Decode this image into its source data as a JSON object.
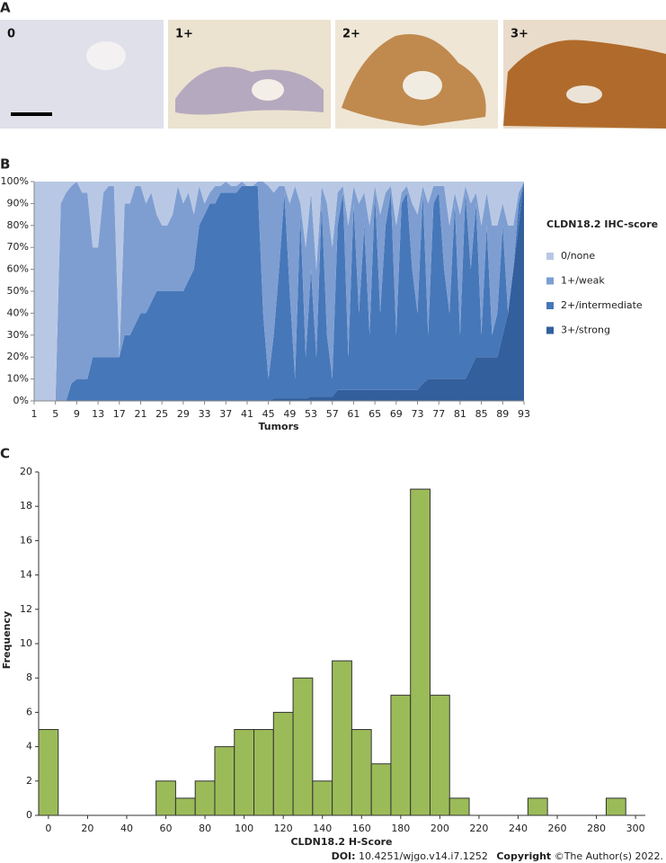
{
  "panel_a": {
    "label": "A",
    "images": [
      {
        "label": "0"
      },
      {
        "label": "1+"
      },
      {
        "label": "2+"
      },
      {
        "label": "3+"
      }
    ]
  },
  "chart_data": [
    {
      "type": "stacked_area",
      "panel_label": "B",
      "x_label": "Tumors",
      "legend_title": "CLDN18.2  IHC-score",
      "x": [
        1,
        2,
        3,
        4,
        5,
        6,
        7,
        8,
        9,
        10,
        11,
        12,
        13,
        14,
        15,
        16,
        17,
        18,
        19,
        20,
        21,
        22,
        23,
        24,
        25,
        26,
        27,
        28,
        29,
        30,
        31,
        32,
        33,
        34,
        35,
        36,
        37,
        38,
        39,
        40,
        41,
        42,
        43,
        44,
        45,
        46,
        47,
        48,
        49,
        50,
        51,
        52,
        53,
        54,
        55,
        56,
        57,
        58,
        59,
        60,
        61,
        62,
        63,
        64,
        65,
        66,
        67,
        68,
        69,
        70,
        71,
        72,
        73,
        74,
        75,
        76,
        77,
        78,
        79,
        80,
        81,
        82,
        83,
        84,
        85,
        86,
        87,
        88,
        89,
        90,
        91,
        92,
        93
      ],
      "xlim": [
        1,
        93
      ],
      "xticks": [
        1,
        5,
        9,
        13,
        17,
        21,
        25,
        29,
        33,
        37,
        41,
        45,
        49,
        53,
        57,
        61,
        65,
        69,
        73,
        77,
        81,
        85,
        89,
        93
      ],
      "ylim": [
        0,
        100
      ],
      "yticks": [
        {
          "value": 0,
          "label": "0%"
        },
        {
          "value": 10,
          "label": "10%"
        },
        {
          "value": 20,
          "label": "20%"
        },
        {
          "value": 30,
          "label": "30%"
        },
        {
          "value": 40,
          "label": "40%"
        },
        {
          "value": 50,
          "label": "50%"
        },
        {
          "value": 60,
          "label": "60%"
        },
        {
          "value": 70,
          "label": "70%"
        },
        {
          "value": 80,
          "label": "80%"
        },
        {
          "value": 90,
          "label": "90%"
        },
        {
          "value": 100,
          "label": "100%"
        }
      ],
      "series": [
        {
          "name": "0/none",
          "color": "#b8c8e4",
          "values": [
            100,
            100,
            100,
            100,
            100,
            10,
            5,
            2,
            0,
            5,
            5,
            30,
            30,
            5,
            2,
            2,
            80,
            10,
            10,
            2,
            2,
            10,
            5,
            15,
            20,
            20,
            15,
            2,
            10,
            5,
            15,
            2,
            10,
            5,
            2,
            2,
            0,
            2,
            2,
            0,
            2,
            2,
            0,
            0,
            2,
            5,
            2,
            2,
            10,
            2,
            10,
            30,
            5,
            40,
            2,
            10,
            30,
            5,
            2,
            20,
            2,
            10,
            5,
            20,
            2,
            15,
            5,
            2,
            20,
            5,
            2,
            10,
            15,
            2,
            10,
            2,
            2,
            2,
            20,
            5,
            15,
            2,
            10,
            5,
            20,
            5,
            20,
            20,
            10,
            20,
            20,
            5,
            0
          ]
        },
        {
          "name": "1+/weak",
          "color": "#7e9ed2",
          "values": [
            0,
            0,
            0,
            0,
            0,
            90,
            95,
            90,
            90,
            85,
            85,
            50,
            50,
            75,
            78,
            78,
            0,
            60,
            60,
            63,
            58,
            50,
            50,
            35,
            30,
            30,
            35,
            48,
            40,
            40,
            25,
            18,
            5,
            5,
            8,
            3,
            5,
            3,
            3,
            2,
            0,
            0,
            2,
            60,
            88,
            65,
            38,
            3,
            40,
            88,
            5,
            50,
            35,
            40,
            8,
            60,
            60,
            15,
            3,
            60,
            8,
            50,
            15,
            50,
            3,
            45,
            15,
            3,
            50,
            5,
            3,
            30,
            45,
            3,
            60,
            8,
            3,
            38,
            40,
            5,
            55,
            3,
            30,
            5,
            50,
            15,
            50,
            40,
            10,
            40,
            20,
            5,
            0
          ]
        },
        {
          "name": "2+/intermediate",
          "color": "#4677b9",
          "values": [
            0,
            0,
            0,
            0,
            0,
            0,
            0,
            8,
            10,
            10,
            10,
            20,
            20,
            20,
            20,
            20,
            20,
            30,
            30,
            35,
            40,
            40,
            45,
            50,
            50,
            50,
            50,
            50,
            50,
            55,
            60,
            80,
            85,
            90,
            90,
            95,
            95,
            95,
            95,
            98,
            98,
            98,
            98,
            40,
            10,
            29,
            59,
            94,
            49,
            9,
            84,
            19,
            58,
            18,
            88,
            28,
            8,
            75,
            90,
            15,
            85,
            35,
            75,
            25,
            90,
            35,
            75,
            90,
            25,
            85,
            90,
            55,
            35,
            87,
            20,
            80,
            85,
            50,
            30,
            80,
            20,
            85,
            45,
            70,
            10,
            60,
            10,
            20,
            50,
            0,
            0,
            10,
            0
          ]
        },
        {
          "name": "3+/strong",
          "color": "#335f9c",
          "values": [
            0,
            0,
            0,
            0,
            0,
            0,
            0,
            0,
            0,
            0,
            0,
            0,
            0,
            0,
            0,
            0,
            0,
            0,
            0,
            0,
            0,
            0,
            0,
            0,
            0,
            0,
            0,
            0,
            0,
            0,
            0,
            0,
            0,
            0,
            0,
            0,
            0,
            0,
            0,
            0,
            0,
            0,
            0,
            0,
            0,
            1,
            1,
            1,
            1,
            1,
            1,
            1,
            2,
            2,
            2,
            2,
            2,
            5,
            5,
            5,
            5,
            5,
            5,
            5,
            5,
            5,
            5,
            5,
            5,
            5,
            5,
            5,
            5,
            8,
            10,
            10,
            10,
            10,
            10,
            10,
            10,
            10,
            15,
            20,
            20,
            20,
            20,
            20,
            30,
            40,
            60,
            80,
            100
          ]
        }
      ]
    },
    {
      "type": "histogram",
      "panel_label": "C",
      "x_label": "CLDN18.2 H-Score",
      "y_label": "Frequency",
      "color": "#9bbb59",
      "bins": [
        -5,
        5,
        15,
        25,
        35,
        45,
        55,
        65,
        75,
        85,
        95,
        105,
        115,
        125,
        135,
        145,
        155,
        165,
        175,
        185,
        195,
        205,
        215,
        225,
        235,
        245,
        255,
        265,
        275,
        285,
        295
      ],
      "counts": [
        5,
        0,
        0,
        0,
        0,
        0,
        2,
        1,
        2,
        4,
        5,
        5,
        6,
        8,
        2,
        9,
        5,
        3,
        7,
        19,
        7,
        1,
        0,
        0,
        0,
        1,
        0,
        0,
        0,
        1
      ],
      "xlim": [
        -5,
        305
      ],
      "xticks": [
        0,
        20,
        40,
        60,
        80,
        100,
        120,
        140,
        160,
        180,
        200,
        220,
        240,
        260,
        280,
        300
      ],
      "ylim": [
        0,
        20
      ],
      "yticks": [
        0,
        2,
        4,
        6,
        8,
        10,
        12,
        14,
        16,
        18,
        20
      ]
    }
  ],
  "footer": {
    "doi_label": "DOI:",
    "doi": "10.4251/wjgo.v14.i7.1252",
    "copyright_label": "Copyright",
    "copyright": "©The Author(s) 2022."
  }
}
